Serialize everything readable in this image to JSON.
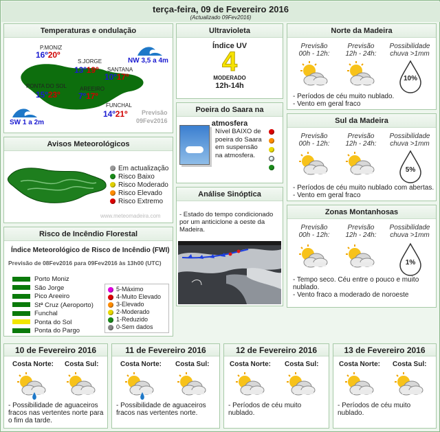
{
  "header": {
    "title": "terça-feira, 09 de Fevereiro 2016",
    "subtitle": "(Actualizado 09Fev2016)"
  },
  "temps": {
    "title": "Temperaturas e ondulação",
    "places": [
      {
        "name": "P.MONIZ",
        "min": "16º",
        "max": "20º"
      },
      {
        "name": "S.JORGE",
        "min": "13º",
        "max": "19º"
      },
      {
        "name": "SANTANA",
        "min": "10º",
        "max": "17º"
      },
      {
        "name": "PONTA DO SOL",
        "min": "15º",
        "max": "23º"
      },
      {
        "name": "AREEIRO",
        "min": "7º",
        "max": "17º"
      },
      {
        "name": "FUNCHAL",
        "min": "14º",
        "max": "21º"
      }
    ],
    "wave_nw": "NW 3,5 a 4m",
    "wave_sw": "SW 1 a 2m",
    "forecast_label": "Previsão",
    "forecast_date": "09Fev2016"
  },
  "avisos": {
    "title": "Avisos Meteorológicos",
    "legend": [
      {
        "label": "Em actualização",
        "color": "#9a9a9a"
      },
      {
        "label": "Risco Baixo",
        "color": "#1a8a1a"
      },
      {
        "label": "Risco Moderado",
        "color": "#e0d000"
      },
      {
        "label": "Risco Elevado",
        "color": "#ff8c00"
      },
      {
        "label": "Risco Extremo",
        "color": "#dd0000"
      }
    ],
    "site": "www.meteomadeira.com"
  },
  "fogo": {
    "title": "Risco de Incêndio Florestal",
    "subtitle": "Índice Meteorológico de Risco de Incêndio (FWI)",
    "period": "Previsão de 08Fev2016 para 09Fev2016 às 13h00 (UTC)",
    "stations": [
      {
        "name": "Porto Moniz",
        "color": "#0a7a0a"
      },
      {
        "name": "São Jorge",
        "color": "#0a7a0a"
      },
      {
        "name": "Pico Areeiro",
        "color": "#0a7a0a"
      },
      {
        "name": "Stª Cruz (Aeroporto)",
        "color": "#0a7a0a"
      },
      {
        "name": "Funchal",
        "color": "#0a7a0a"
      },
      {
        "name": "Ponta do Sol",
        "color": "#f2e600"
      },
      {
        "name": "Ponta do Pargo",
        "color": "#0a7a0a"
      }
    ],
    "scale": [
      {
        "label": "5-Máximo",
        "color": "#e000e0"
      },
      {
        "label": "4-Muito Elevado",
        "color": "#dd0000"
      },
      {
        "label": "3-Elevado",
        "color": "#ff8c00"
      },
      {
        "label": "2-Moderado",
        "color": "#e8d800"
      },
      {
        "label": "1-Reduzido",
        "color": "#1a8a1a"
      },
      {
        "label": "0-Sem dados",
        "color": "#888888"
      }
    ]
  },
  "uv": {
    "title": "Ultravioleta",
    "label": "Índice UV",
    "value": "4",
    "level": "MODERADO",
    "hours": "12h-14h"
  },
  "poeira": {
    "title": "Poeira do Saara na atmosfera",
    "text": "Nível BAIXO de poeira do Saara em suspensão na atmosfera."
  },
  "sinoptica": {
    "title": "Análise Sinóptica",
    "text": "- Estado do tempo condicionado por um anticiclone a oeste da Madeira."
  },
  "norte": {
    "title": "Norte da Madeira",
    "h1": "Previsão",
    "h1b": "00h - 12h:",
    "h2": "Previsão",
    "h2b": "12h - 24h:",
    "h3": "Possibilidade",
    "h3b": "chuva >1mm",
    "pct": "10%",
    "n1": "- Períodos de céu muito nublado.",
    "n2": "- Vento em geral fraco"
  },
  "sul": {
    "title": "Sul da Madeira",
    "h1": "Previsão",
    "h1b": "00h - 12h:",
    "h2": "Previsão",
    "h2b": "12h - 24h:",
    "h3": "Possibilidade",
    "h3b": "chuva >1mm",
    "pct": "5%",
    "n1": "- Períodos de céu muito nublado com abertas.",
    "n2": "- Vento em geral fraco"
  },
  "montanha": {
    "title": "Zonas Montanhosas",
    "h1": "Previsão",
    "h1b": "00h - 12h:",
    "h2": "Previsão",
    "h2b": "12h - 24h:",
    "h3": "Possibilidade",
    "h3b": "chuva >1mm",
    "pct": "1%",
    "n1": "- Tempo seco. Céu entre o pouco e muito nublado.",
    "n2": "- Vento fraco a moderado de noroeste"
  },
  "days": [
    {
      "date": "10 de Fevereiro 2016",
      "north": "Costa Norte:",
      "south": "Costa Sul:",
      "text": "- Possibilidade de aguaceiros fracos nas vertentes norte para o fim da tarde."
    },
    {
      "date": "11 de Fevereiro 2016",
      "north": "Costa Norte:",
      "south": "Costa Sul:",
      "text": "- Possibilidade de aguaceiros fracos nas vertentes norte."
    },
    {
      "date": "12 de Fevereiro 2016",
      "north": "Costa Norte:",
      "south": "Costa Sul:",
      "text": "- Períodos de céu muito nublado."
    },
    {
      "date": "13 de Fevereiro 2016",
      "north": "Costa Norte:",
      "south": "Costa Sul:",
      "text": "- Períodos de céu muito nublado."
    }
  ]
}
